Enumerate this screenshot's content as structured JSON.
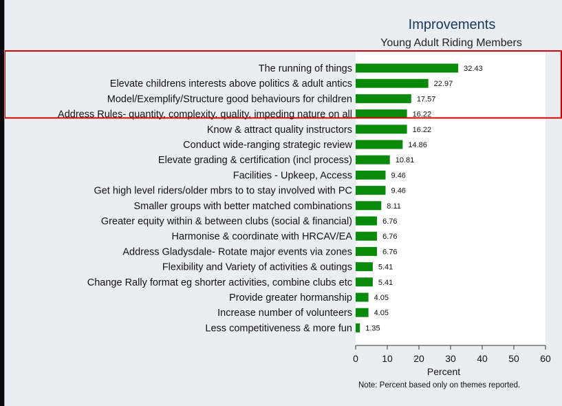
{
  "chart_data": {
    "type": "bar",
    "orientation": "horizontal",
    "title": "Improvements",
    "subtitle": "Young Adult Riding Members",
    "xlabel": "Percent",
    "ylabel": "",
    "xlim": [
      0,
      60
    ],
    "x_ticks": [
      0,
      10,
      20,
      30,
      40,
      50,
      60
    ],
    "grid": false,
    "note": "Note: Percent based only on themes reported.",
    "bar_color": "#0a8a0a",
    "highlight_color": "#d40000",
    "highlighted_categories": [
      0,
      1,
      2
    ],
    "categories": [
      "The running of things",
      "Elevate childrens interests above politics & adult antics",
      "Model/Exemplify/Structure good behaviours for children",
      "Address Rules- quantity, complexity, quality, impeding nature on all",
      "Know & attract quality instructors",
      "Conduct wide-ranging strategic review",
      "Elevate grading & certification (incl process)",
      "Facilities - Upkeep, Access",
      "Get high level riders/older mbrs to to stay involved with PC",
      "Smaller groups with better matched combinations",
      "Greater equity within & between clubs (social & financial)",
      "Harmonise & coordinate with HRCAV/EA",
      "Address Gladysdale- Rotate major events via zones",
      "Flexibility and Variety of activities & outings",
      "Change Rally format eg shorter activities, combine clubs etc",
      "Provide greater hormanship",
      "Increase number of volunteers",
      "Less competitiveness & more fun"
    ],
    "values": [
      32.43,
      22.97,
      17.57,
      16.22,
      16.22,
      14.86,
      10.81,
      9.46,
      9.46,
      8.11,
      6.76,
      6.76,
      6.76,
      5.41,
      5.41,
      4.05,
      4.05,
      1.35
    ],
    "value_labels": [
      "32.43",
      "22.97",
      "17.57",
      "16.22",
      "16.22",
      "14.86",
      "10.81",
      "9.46",
      "9.46",
      "8.11",
      "6.76",
      "6.76",
      "6.76",
      "5.41",
      "5.41",
      "4.05",
      "4.05",
      "1.35"
    ]
  }
}
